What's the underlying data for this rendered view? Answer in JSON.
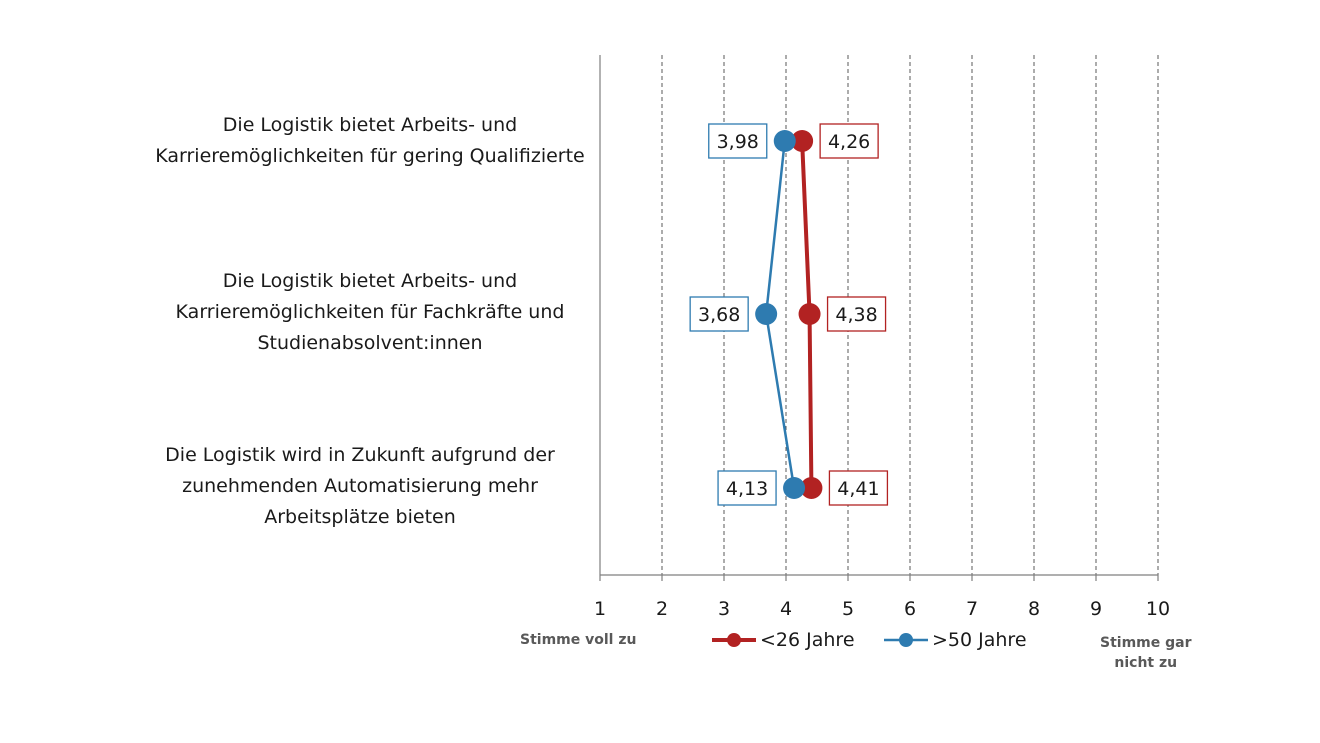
{
  "chart_data": {
    "type": "line",
    "orientation": "horizontal",
    "categories": [
      [
        "Die Logistik bietet Arbeits- und",
        "Karrieremöglichkeiten für gering Qualifizierte"
      ],
      [
        "Die Logistik bietet Arbeits- und",
        "Karrieremöglichkeiten für Fachkräfte und",
        "Studienabsolvent:innen"
      ],
      [
        "Die Logistik wird in Zukunft aufgrund der",
        "zunehmenden Automatisierung mehr",
        "Arbeitsplätze bieten"
      ]
    ],
    "series": [
      {
        "name": "<26 Jahre",
        "color": "#b22222",
        "values": [
          4.26,
          4.38,
          4.41
        ],
        "labels": [
          "4,26",
          "4,38",
          "4,41"
        ]
      },
      {
        "name": ">50 Jahre",
        "color": "#2e7bb0",
        "values": [
          3.98,
          3.68,
          4.13
        ],
        "labels": [
          "3,98",
          "3,68",
          "4,13"
        ]
      }
    ],
    "xlim": [
      1,
      10
    ],
    "xticks": [
      "1",
      "2",
      "3",
      "4",
      "5",
      "6",
      "7",
      "8",
      "9",
      "10"
    ],
    "x_min_label": "Stimme voll zu",
    "x_max_label": [
      "Stimme gar",
      "nicht zu"
    ],
    "grid": "vertical dashed",
    "legend_position": "bottom-center"
  }
}
